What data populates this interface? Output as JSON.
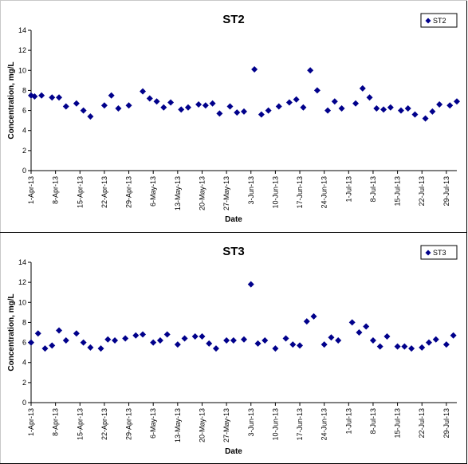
{
  "chart_data": [
    {
      "type": "scatter",
      "title": "ST2",
      "xlabel": "Date",
      "ylabel": "Concentration, mg/L",
      "ylim": [
        0,
        14
      ],
      "yticks": [
        "0",
        "2",
        "4",
        "6",
        "8",
        "10",
        "12",
        "14"
      ],
      "xlim": [
        "2013-04-01",
        "2013-08-01"
      ],
      "xticks": [
        "1-Apr-13",
        "8-Apr-13",
        "15-Apr-13",
        "22-Apr-13",
        "29-Apr-13",
        "6-May-13",
        "13-May-13",
        "20-May-13",
        "27-May-13",
        "3-Jun-13",
        "10-Jun-13",
        "17-Jun-13",
        "24-Jun-13",
        "1-Jul-13",
        "8-Jul-13",
        "15-Jul-13",
        "22-Jul-13",
        "29-Jul-13"
      ],
      "grid": false,
      "legend": "top-right",
      "color": "#00008b",
      "series": [
        {
          "name": "ST2",
          "points": [
            {
              "x": "2013-04-01",
              "y": 7.5
            },
            {
              "x": "2013-04-02",
              "y": 7.4
            },
            {
              "x": "2013-04-04",
              "y": 7.5
            },
            {
              "x": "2013-04-07",
              "y": 7.3
            },
            {
              "x": "2013-04-09",
              "y": 7.3
            },
            {
              "x": "2013-04-11",
              "y": 6.4
            },
            {
              "x": "2013-04-14",
              "y": 6.7
            },
            {
              "x": "2013-04-16",
              "y": 6.0
            },
            {
              "x": "2013-04-18",
              "y": 5.4
            },
            {
              "x": "2013-04-22",
              "y": 6.5
            },
            {
              "x": "2013-04-24",
              "y": 7.5
            },
            {
              "x": "2013-04-26",
              "y": 6.2
            },
            {
              "x": "2013-04-29",
              "y": 6.5
            },
            {
              "x": "2013-05-03",
              "y": 7.9
            },
            {
              "x": "2013-05-05",
              "y": 7.2
            },
            {
              "x": "2013-05-07",
              "y": 6.9
            },
            {
              "x": "2013-05-09",
              "y": 6.3
            },
            {
              "x": "2013-05-11",
              "y": 6.8
            },
            {
              "x": "2013-05-14",
              "y": 6.1
            },
            {
              "x": "2013-05-16",
              "y": 6.3
            },
            {
              "x": "2013-05-19",
              "y": 6.6
            },
            {
              "x": "2013-05-21",
              "y": 6.5
            },
            {
              "x": "2013-05-23",
              "y": 6.7
            },
            {
              "x": "2013-05-25",
              "y": 5.7
            },
            {
              "x": "2013-05-28",
              "y": 6.4
            },
            {
              "x": "2013-05-30",
              "y": 5.8
            },
            {
              "x": "2013-06-01",
              "y": 5.9
            },
            {
              "x": "2013-06-04",
              "y": 10.1
            },
            {
              "x": "2013-06-06",
              "y": 5.6
            },
            {
              "x": "2013-06-08",
              "y": 6.0
            },
            {
              "x": "2013-06-11",
              "y": 6.4
            },
            {
              "x": "2013-06-14",
              "y": 6.8
            },
            {
              "x": "2013-06-16",
              "y": 7.1
            },
            {
              "x": "2013-06-18",
              "y": 6.3
            },
            {
              "x": "2013-06-20",
              "y": 10.0
            },
            {
              "x": "2013-06-22",
              "y": 8.0
            },
            {
              "x": "2013-06-25",
              "y": 6.0
            },
            {
              "x": "2013-06-27",
              "y": 6.9
            },
            {
              "x": "2013-06-29",
              "y": 6.2
            },
            {
              "x": "2013-07-03",
              "y": 6.7
            },
            {
              "x": "2013-07-05",
              "y": 8.2
            },
            {
              "x": "2013-07-07",
              "y": 7.3
            },
            {
              "x": "2013-07-09",
              "y": 6.2
            },
            {
              "x": "2013-07-11",
              "y": 6.1
            },
            {
              "x": "2013-07-13",
              "y": 6.3
            },
            {
              "x": "2013-07-16",
              "y": 6.0
            },
            {
              "x": "2013-07-18",
              "y": 6.2
            },
            {
              "x": "2013-07-20",
              "y": 5.6
            },
            {
              "x": "2013-07-23",
              "y": 5.2
            },
            {
              "x": "2013-07-25",
              "y": 5.9
            },
            {
              "x": "2013-07-27",
              "y": 6.6
            },
            {
              "x": "2013-07-30",
              "y": 6.5
            },
            {
              "x": "2013-08-01",
              "y": 6.9
            }
          ]
        }
      ]
    },
    {
      "type": "scatter",
      "title": "ST3",
      "xlabel": "Date",
      "ylabel": "Concentration, mg/L",
      "ylim": [
        0,
        14
      ],
      "yticks": [
        "0",
        "2",
        "4",
        "6",
        "8",
        "10",
        "12",
        "14"
      ],
      "xlim": [
        "2013-04-01",
        "2013-08-01"
      ],
      "xticks": [
        "1-Apr-13",
        "8-Apr-13",
        "15-Apr-13",
        "22-Apr-13",
        "29-Apr-13",
        "6-May-13",
        "13-May-13",
        "20-May-13",
        "27-May-13",
        "3-Jun-13",
        "10-Jun-13",
        "17-Jun-13",
        "24-Jun-13",
        "1-Jul-13",
        "8-Jul-13",
        "15-Jul-13",
        "22-Jul-13",
        "29-Jul-13"
      ],
      "grid": false,
      "legend": "top-right",
      "color": "#00008b",
      "series": [
        {
          "name": "ST3",
          "points": [
            {
              "x": "2013-04-01",
              "y": 6.0
            },
            {
              "x": "2013-04-03",
              "y": 6.9
            },
            {
              "x": "2013-04-05",
              "y": 5.4
            },
            {
              "x": "2013-04-07",
              "y": 5.7
            },
            {
              "x": "2013-04-09",
              "y": 7.2
            },
            {
              "x": "2013-04-11",
              "y": 6.2
            },
            {
              "x": "2013-04-14",
              "y": 6.9
            },
            {
              "x": "2013-04-16",
              "y": 6.0
            },
            {
              "x": "2013-04-18",
              "y": 5.5
            },
            {
              "x": "2013-04-21",
              "y": 5.4
            },
            {
              "x": "2013-04-23",
              "y": 6.3
            },
            {
              "x": "2013-04-25",
              "y": 6.2
            },
            {
              "x": "2013-04-28",
              "y": 6.4
            },
            {
              "x": "2013-05-01",
              "y": 6.7
            },
            {
              "x": "2013-05-03",
              "y": 6.8
            },
            {
              "x": "2013-05-06",
              "y": 6.0
            },
            {
              "x": "2013-05-08",
              "y": 6.2
            },
            {
              "x": "2013-05-10",
              "y": 6.8
            },
            {
              "x": "2013-05-13",
              "y": 5.8
            },
            {
              "x": "2013-05-15",
              "y": 6.4
            },
            {
              "x": "2013-05-18",
              "y": 6.6
            },
            {
              "x": "2013-05-20",
              "y": 6.6
            },
            {
              "x": "2013-05-22",
              "y": 5.9
            },
            {
              "x": "2013-05-24",
              "y": 5.4
            },
            {
              "x": "2013-05-27",
              "y": 6.2
            },
            {
              "x": "2013-05-29",
              "y": 6.2
            },
            {
              "x": "2013-06-01",
              "y": 6.3
            },
            {
              "x": "2013-06-03",
              "y": 11.8
            },
            {
              "x": "2013-06-05",
              "y": 5.9
            },
            {
              "x": "2013-06-07",
              "y": 6.2
            },
            {
              "x": "2013-06-10",
              "y": 5.4
            },
            {
              "x": "2013-06-13",
              "y": 6.4
            },
            {
              "x": "2013-06-15",
              "y": 5.8
            },
            {
              "x": "2013-06-17",
              "y": 5.7
            },
            {
              "x": "2013-06-19",
              "y": 8.1
            },
            {
              "x": "2013-06-21",
              "y": 8.6
            },
            {
              "x": "2013-06-24",
              "y": 5.8
            },
            {
              "x": "2013-06-26",
              "y": 6.5
            },
            {
              "x": "2013-06-28",
              "y": 6.2
            },
            {
              "x": "2013-07-02",
              "y": 8.0
            },
            {
              "x": "2013-07-04",
              "y": 7.0
            },
            {
              "x": "2013-07-06",
              "y": 7.6
            },
            {
              "x": "2013-07-08",
              "y": 6.2
            },
            {
              "x": "2013-07-10",
              "y": 5.6
            },
            {
              "x": "2013-07-12",
              "y": 6.6
            },
            {
              "x": "2013-07-15",
              "y": 5.6
            },
            {
              "x": "2013-07-17",
              "y": 5.6
            },
            {
              "x": "2013-07-19",
              "y": 5.4
            },
            {
              "x": "2013-07-22",
              "y": 5.5
            },
            {
              "x": "2013-07-24",
              "y": 6.0
            },
            {
              "x": "2013-07-26",
              "y": 6.3
            },
            {
              "x": "2013-07-29",
              "y": 5.8
            },
            {
              "x": "2013-07-31",
              "y": 6.7
            }
          ]
        }
      ]
    }
  ]
}
